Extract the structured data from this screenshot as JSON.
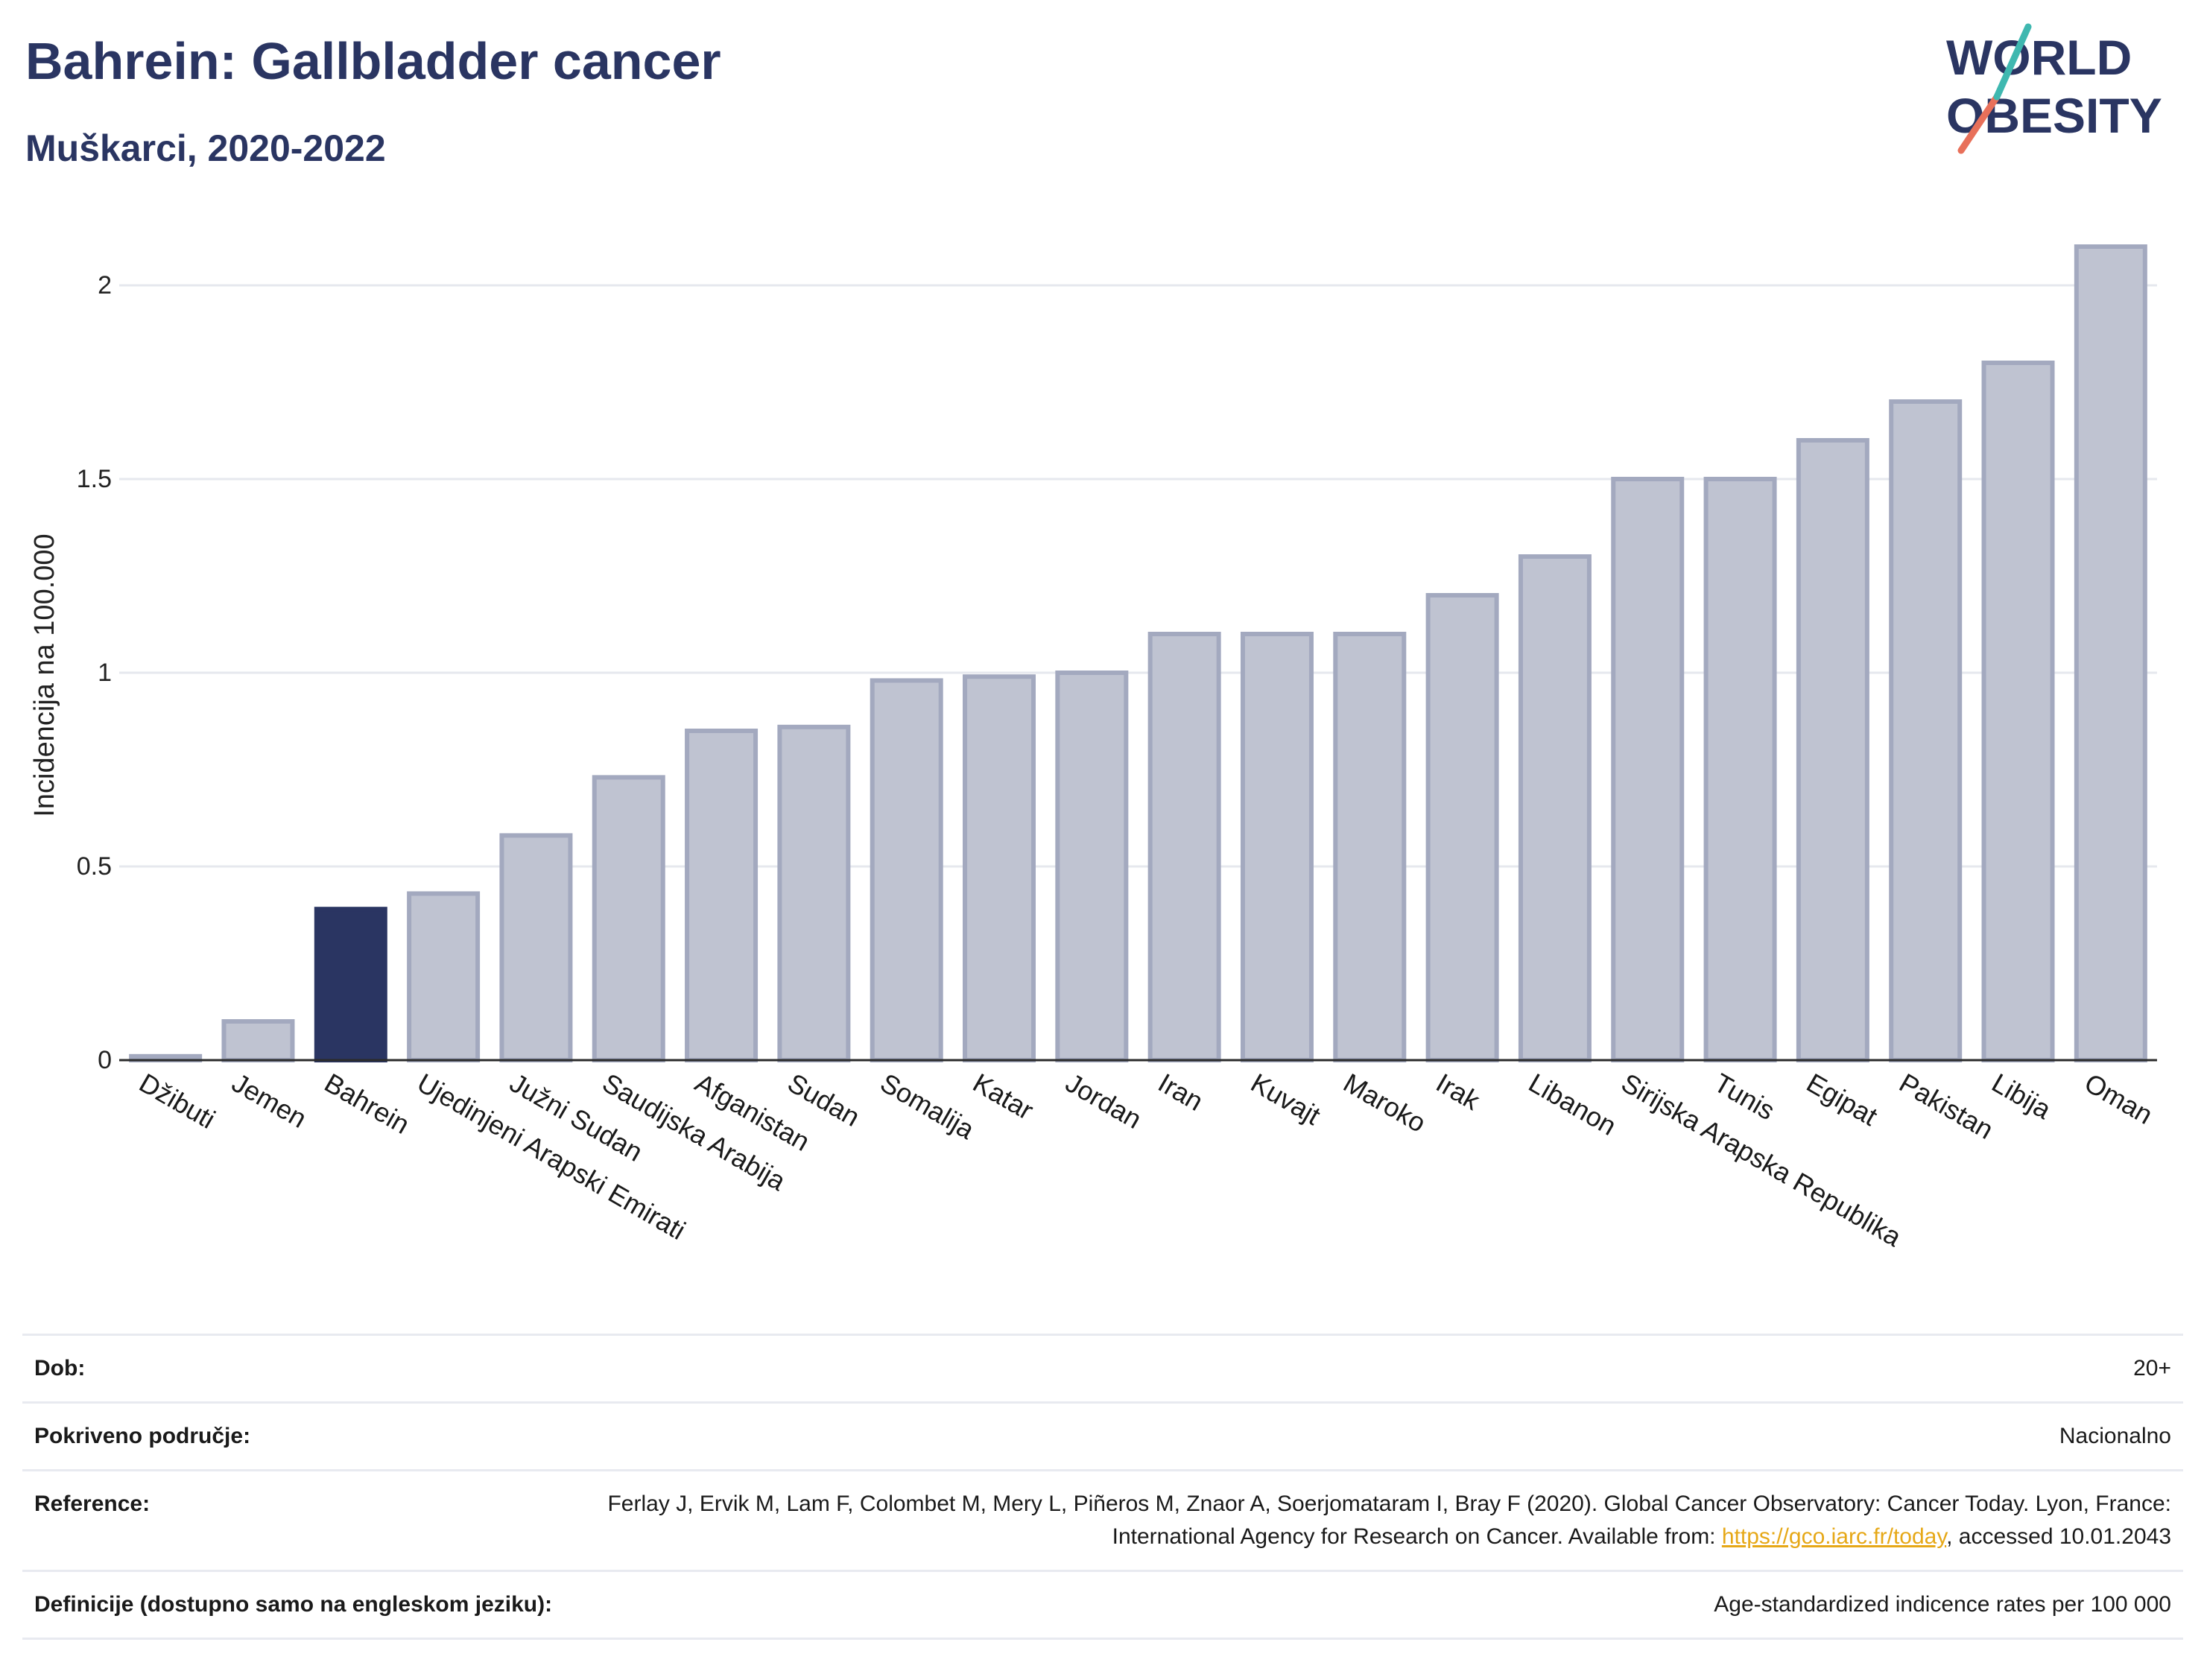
{
  "header": {
    "title": "Bahrein: Gallbladder cancer",
    "subtitle": "Muškarci, 2020-2022",
    "logo_line1": "WORLD",
    "logo_line2": "OBESITY"
  },
  "chart_data": {
    "type": "bar",
    "ylabel": "Incidencija na 100.000",
    "xlabel": "",
    "ylim": [
      0,
      2.2
    ],
    "yticks": [
      0,
      0.5,
      1,
      1.5,
      2
    ],
    "ytick_labels": [
      "0",
      "0.5",
      "1",
      "1.5",
      "2"
    ],
    "grid": true,
    "highlight": "Bahrein",
    "categories": [
      "Džibuti",
      "Jemen",
      "Bahrein",
      "Ujedinjeni Arapski Emirati",
      "Južni Sudan",
      "Saudijska Arabija",
      "Afganistan",
      "Sudan",
      "Somalija",
      "Katar",
      "Jordan",
      "Iran",
      "Kuvajt",
      "Maroko",
      "Irak",
      "Libanon",
      "Sirijska Arapska Republika",
      "Tunis",
      "Egipat",
      "Pakistan",
      "Libija",
      "Oman"
    ],
    "values": [
      0.01,
      0.1,
      0.39,
      0.43,
      0.58,
      0.73,
      0.85,
      0.86,
      0.98,
      0.99,
      1.0,
      1.1,
      1.1,
      1.1,
      1.2,
      1.3,
      1.5,
      1.5,
      1.6,
      1.7,
      1.8,
      2.1
    ],
    "colors": {
      "highlight": "#2a3562",
      "default": "#bfc3d1",
      "default_border": "#a3a9bf"
    }
  },
  "info": {
    "age_label": "Dob:",
    "age_value": "20+",
    "coverage_label": "Pokriveno područje:",
    "coverage_value": "Nacionalno",
    "reference_label": "Reference:",
    "reference_text": "Ferlay J, Ervik M, Lam F, Colombet M, Mery L, Piñeros M, Znaor A, Soerjomataram I, Bray F (2020). Global Cancer Observatory: Cancer Today. Lyon, France: International Agency for Research on Cancer. Available from: ",
    "reference_link": "https://gco.iarc.fr/today",
    "reference_suffix": ", accessed 10.01.2043",
    "definitions_label": "Definicije (dostupno samo na engleskom jeziku):",
    "definitions_value": "Age-standardized indicence rates per 100 000"
  }
}
